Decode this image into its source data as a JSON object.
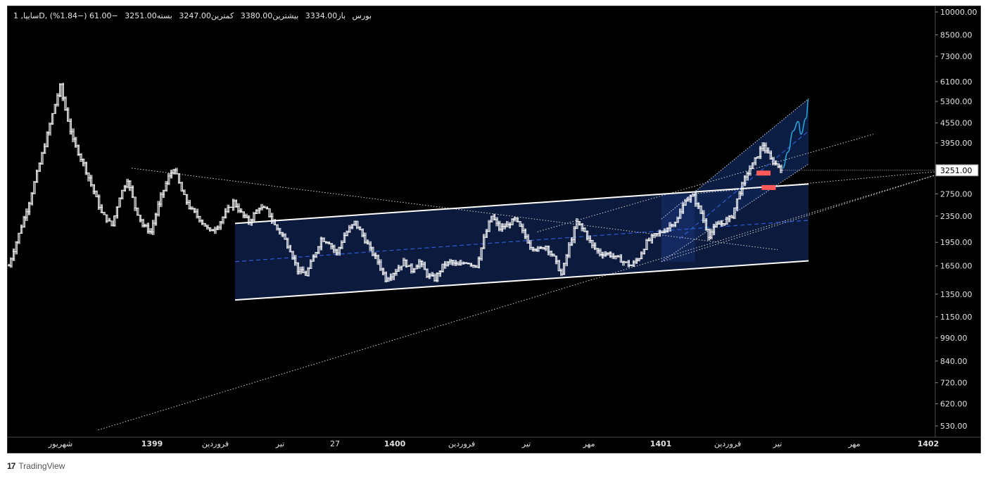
{
  "legend": {
    "symbol": "سایپا, 1D, بورس",
    "open": "باز3334.00",
    "high": "بیشترین3380.00",
    "low": "کمترین3247.00",
    "close": "بسته3251.00",
    "change": "−61.00 (−1.84%)"
  },
  "last_price_label": "3251.00",
  "footer": {
    "brand": "TradingView",
    "logo_text": "17"
  },
  "colors": {
    "background": "#000000",
    "candles": "#ffffff",
    "channel_fill": "#0c1a3d",
    "channel_border": "#ffffff",
    "midline": "#2f5bd6",
    "projection": "#29a8e0",
    "marker": "#ff5a5a",
    "price_tag_bg": "#ffffff",
    "price_tag_text": "#000000"
  },
  "chart_data": {
    "type": "candlestick",
    "title": "",
    "y_scale": "log",
    "grid": false,
    "y_ticks": [
      10000,
      8500,
      7300,
      6100,
      5300,
      4550,
      3950,
      3250,
      2750,
      2350,
      1950,
      1650,
      1350,
      1150,
      990,
      840,
      720,
      620,
      530
    ],
    "y_tick_labels": [
      "10000.00",
      "8500.00",
      "7300.00",
      "6100.00",
      "5300.00",
      "4550.00",
      "3950.00",
      "3250.00",
      "2750.00",
      "2350.00",
      "1950.00",
      "1650.00",
      "1350.00",
      "1150.00",
      "990.00",
      "840.00",
      "720.00",
      "620.00",
      "530.00"
    ],
    "x_ticks": [
      {
        "label": "شهریور",
        "bold": false
      },
      {
        "label": "1399",
        "bold": true
      },
      {
        "label": "فروردین",
        "bold": false
      },
      {
        "label": "تیر",
        "bold": false
      },
      {
        "label": "27",
        "bold": false
      },
      {
        "label": "1400",
        "bold": true
      },
      {
        "label": "فروردین",
        "bold": false
      },
      {
        "label": "تیر",
        "bold": false
      },
      {
        "label": "مهر",
        "bold": false
      },
      {
        "label": "1401",
        "bold": true
      },
      {
        "label": "فروردین",
        "bold": false
      },
      {
        "label": "تیر",
        "bold": false
      },
      {
        "label": "مهر",
        "bold": false
      },
      {
        "label": "1402",
        "bold": true
      }
    ],
    "last_close": 3251,
    "price_path": [
      [
        0,
        1650
      ],
      [
        8,
        2600
      ],
      [
        14,
        3900
      ],
      [
        18,
        5200
      ],
      [
        20,
        5900
      ],
      [
        22,
        5000
      ],
      [
        25,
        4000
      ],
      [
        29,
        3400
      ],
      [
        33,
        2800
      ],
      [
        36,
        2400
      ],
      [
        40,
        2200
      ],
      [
        43,
        2700
      ],
      [
        46,
        3050
      ],
      [
        49,
        2500
      ],
      [
        52,
        2200
      ],
      [
        55,
        2100
      ],
      [
        59,
        2700
      ],
      [
        62,
        3100
      ],
      [
        64,
        3300
      ],
      [
        67,
        2800
      ],
      [
        70,
        2500
      ],
      [
        74,
        2300
      ],
      [
        78,
        2100
      ],
      [
        81,
        2200
      ],
      [
        84,
        2400
      ],
      [
        87,
        2600
      ],
      [
        90,
        2400
      ],
      [
        93,
        2250
      ],
      [
        97,
        2500
      ],
      [
        100,
        2450
      ],
      [
        103,
        2200
      ],
      [
        106,
        2050
      ],
      [
        109,
        1850
      ],
      [
        112,
        1600
      ],
      [
        115,
        1550
      ],
      [
        118,
        1750
      ],
      [
        121,
        2000
      ],
      [
        124,
        1950
      ],
      [
        127,
        1800
      ],
      [
        130,
        2050
      ],
      [
        134,
        2250
      ],
      [
        137,
        2050
      ],
      [
        140,
        1850
      ],
      [
        143,
        1700
      ],
      [
        146,
        1500
      ],
      [
        150,
        1600
      ],
      [
        153,
        1700
      ],
      [
        156,
        1600
      ],
      [
        159,
        1700
      ],
      [
        162,
        1550
      ],
      [
        165,
        1500
      ],
      [
        168,
        1650
      ],
      [
        171,
        1700
      ],
      [
        174,
        1650
      ],
      [
        177,
        1700
      ],
      [
        181,
        1650
      ],
      [
        184,
        2000
      ],
      [
        187,
        2350
      ],
      [
        190,
        2150
      ],
      [
        193,
        2200
      ],
      [
        196,
        2300
      ],
      [
        199,
        2100
      ],
      [
        202,
        1900
      ],
      [
        205,
        1850
      ],
      [
        208,
        1900
      ],
      [
        211,
        1750
      ],
      [
        214,
        1550
      ],
      [
        217,
        1900
      ],
      [
        220,
        2250
      ],
      [
        223,
        2100
      ],
      [
        226,
        1900
      ],
      [
        229,
        1800
      ],
      [
        232,
        1800
      ],
      [
        235,
        1750
      ],
      [
        238,
        1700
      ],
      [
        241,
        1650
      ],
      [
        244,
        1750
      ],
      [
        247,
        1950
      ],
      [
        250,
        2050
      ],
      [
        253,
        2100
      ],
      [
        256,
        2200
      ],
      [
        259,
        2300
      ],
      [
        262,
        2650
      ],
      [
        265,
        2700
      ],
      [
        268,
        2400
      ],
      [
        271,
        2050
      ],
      [
        274,
        2200
      ],
      [
        277,
        2250
      ],
      [
        280,
        2350
      ],
      [
        283,
        2800
      ],
      [
        286,
        3200
      ],
      [
        289,
        3500
      ],
      [
        292,
        3900
      ],
      [
        295,
        3500
      ],
      [
        298,
        3350
      ],
      [
        300,
        3251
      ]
    ],
    "channel": {
      "upper": [
        [
          88,
          2230
        ],
        [
          310,
          2950
        ]
      ],
      "lower": [
        [
          88,
          1295
        ],
        [
          310,
          1710
        ]
      ],
      "mid": [
        [
          88,
          1700
        ],
        [
          310,
          2280
        ]
      ]
    },
    "rising_channel": {
      "upper": [
        [
          253,
          2300
        ],
        [
          310,
          5400
        ]
      ],
      "lower": [
        [
          253,
          1700
        ],
        [
          310,
          3400
        ]
      ],
      "mid": [
        [
          260,
          2000
        ],
        [
          310,
          4300
        ]
      ]
    },
    "projection": [
      [
        300,
        3300
      ],
      [
        302,
        3700
      ],
      [
        304,
        4300
      ],
      [
        306,
        4600
      ],
      [
        307,
        4200
      ],
      [
        309,
        4700
      ],
      [
        310,
        5400
      ]
    ],
    "trendlines": [
      {
        "name": "resistance-1399",
        "from": [
          48,
          3300
        ],
        "to": [
          298,
          1850
        ]
      },
      {
        "name": "long-support",
        "from": [
          35,
          515
        ],
        "to": [
          365,
          3250
        ]
      },
      {
        "name": "fan-lower",
        "from": [
          253,
          1700
        ],
        "to": [
          365,
          3250
        ]
      },
      {
        "name": "fan-upper",
        "from": [
          205,
          2100
        ],
        "to": [
          335,
          4200
        ]
      },
      {
        "name": "high-projection",
        "from": [
          265,
          2750
        ],
        "to": [
          365,
          3250
        ]
      }
    ],
    "markers": [
      {
        "name": "support-box-1",
        "x": 292,
        "y": 3180
      },
      {
        "name": "support-box-2",
        "x": 294,
        "y": 2870
      }
    ]
  }
}
